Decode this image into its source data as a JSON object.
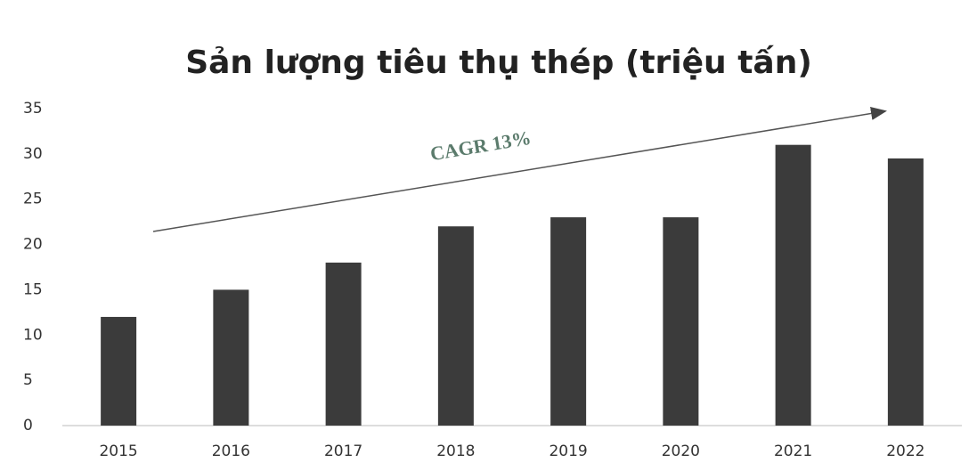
{
  "chart_data": {
    "type": "bar",
    "title": "Sản lượng tiêu thụ thép (triệu tấn)",
    "categories": [
      "2015",
      "2016",
      "2017",
      "2018",
      "2019",
      "2020",
      "2021",
      "2022"
    ],
    "values": [
      12,
      15,
      18,
      22,
      23,
      23,
      31,
      29.5
    ],
    "color": "#3b3b3b",
    "ylim": [
      0,
      35
    ],
    "yticks": [
      0,
      5,
      10,
      15,
      20,
      25,
      30,
      35
    ],
    "grid": false,
    "annotation": "CAGR 13%"
  }
}
